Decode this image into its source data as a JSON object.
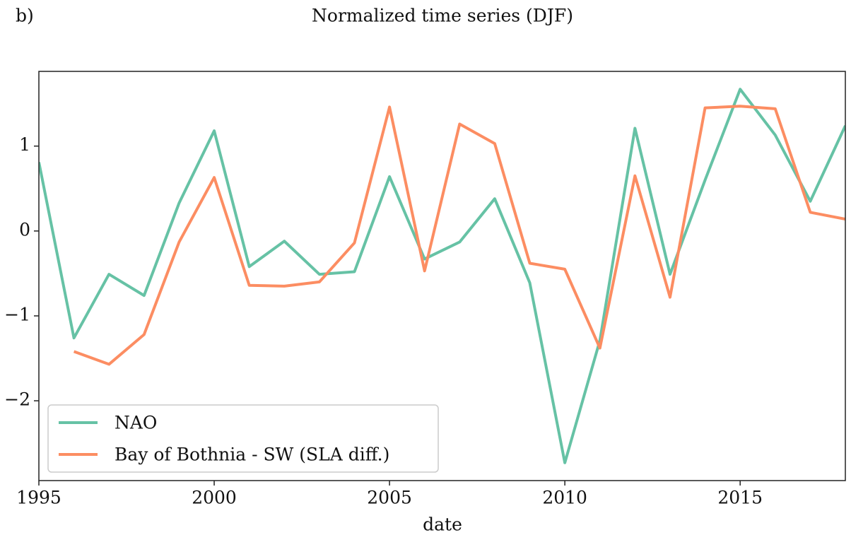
{
  "chart_data": {
    "type": "line",
    "panel_label": "b)",
    "title": "Normalized time series (DJF)",
    "xlabel": "date",
    "x": [
      1995,
      1996,
      1997,
      1998,
      1999,
      2000,
      2001,
      2002,
      2003,
      2004,
      2005,
      2006,
      2007,
      2008,
      2009,
      2010,
      2011,
      2012,
      2013,
      2014,
      2015,
      2016,
      2017,
      2018
    ],
    "series": [
      {
        "name": "NAO",
        "color": "#66c2a5",
        "values": [
          0.81,
          -1.26,
          -0.51,
          -0.76,
          0.33,
          1.18,
          -0.42,
          -0.12,
          -0.51,
          -0.48,
          0.64,
          -0.33,
          -0.13,
          0.38,
          -0.61,
          -2.73,
          -1.29,
          1.21,
          -0.51,
          0.6,
          1.67,
          1.13,
          0.35,
          1.24
        ]
      },
      {
        "name": "Bay of Bothnia - SW (SLA diff.)",
        "color": "#fc8d62",
        "values": [
          null,
          -1.42,
          -1.57,
          -1.22,
          -0.13,
          0.63,
          -0.64,
          -0.65,
          -0.6,
          -0.14,
          1.46,
          -0.47,
          1.26,
          1.03,
          -0.38,
          -0.45,
          -1.38,
          0.65,
          -0.78,
          1.45,
          1.47,
          1.44,
          0.22,
          0.14
        ]
      }
    ],
    "xlim": [
      1995,
      2018
    ],
    "xticks": [
      1995,
      2000,
      2005,
      2010,
      2015
    ],
    "ylim": [
      -2.94,
      1.88
    ],
    "yticks": [
      {
        "value": -2,
        "label": "−2"
      },
      {
        "value": -1,
        "label": "−1"
      },
      0,
      1
    ],
    "legend": "lower left",
    "grid": false
  }
}
